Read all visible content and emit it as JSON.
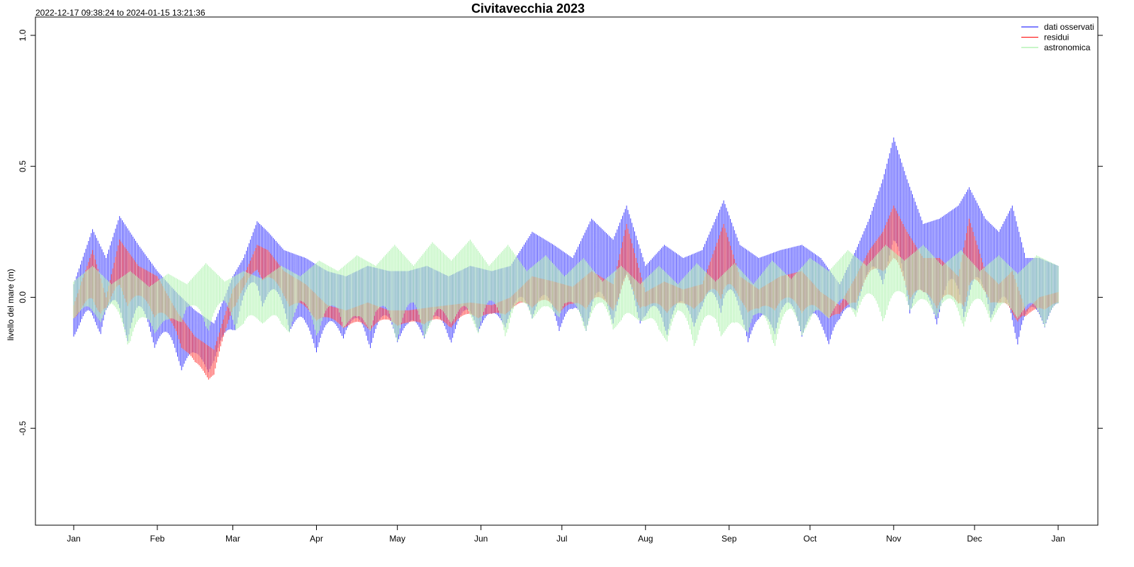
{
  "chart_data": {
    "type": "line",
    "title": "Civitavecchia 2023",
    "subtitle": "2022-12-17 09:38:24 to 2024-01-15 13:21:36",
    "ylabel": "livello del mare (m)",
    "xlabel": "",
    "x_start": "2023-01-01",
    "x_end": "2024-01-01",
    "x_ticks": [
      "Jan",
      "Feb",
      "Mar",
      "Apr",
      "May",
      "Jun",
      "Jul",
      "Aug",
      "Sep",
      "Oct",
      "Nov",
      "Dec",
      "Jan"
    ],
    "x_tick_dates": [
      "2023-01-01",
      "2023-02-01",
      "2023-03-01",
      "2023-04-01",
      "2023-05-01",
      "2023-06-01",
      "2023-07-01",
      "2023-08-01",
      "2023-09-01",
      "2023-10-01",
      "2023-11-01",
      "2023-12-01",
      "2024-01-01"
    ],
    "ylim": [
      -0.87,
      1.07
    ],
    "y_ticks": [
      -0.5,
      0.0,
      0.5,
      1.0
    ],
    "y_tick_labels": [
      "-0.5",
      "0.0",
      "0.5",
      "1.0"
    ],
    "legend_position": "top-right",
    "series": [
      {
        "name": "dati osservati",
        "color": "#0000ff",
        "envelope": {
          "dates": [
            "2023-01-01",
            "2023-01-08",
            "2023-01-13",
            "2023-01-18",
            "2023-01-25",
            "2023-02-01",
            "2023-02-08",
            "2023-02-15",
            "2023-02-22",
            "2023-03-01",
            "2023-03-05",
            "2023-03-10",
            "2023-03-14",
            "2023-03-20",
            "2023-03-28",
            "2023-04-05",
            "2023-04-12",
            "2023-04-20",
            "2023-04-28",
            "2023-05-05",
            "2023-05-12",
            "2023-05-20",
            "2023-05-28",
            "2023-06-05",
            "2023-06-12",
            "2023-06-20",
            "2023-06-28",
            "2023-07-05",
            "2023-07-12",
            "2023-07-20",
            "2023-07-25",
            "2023-08-01",
            "2023-08-08",
            "2023-08-15",
            "2023-08-22",
            "2023-08-30",
            "2023-09-05",
            "2023-09-12",
            "2023-09-20",
            "2023-09-28",
            "2023-10-05",
            "2023-10-12",
            "2023-10-18",
            "2023-10-23",
            "2023-10-28",
            "2023-11-01",
            "2023-11-06",
            "2023-11-12",
            "2023-11-18",
            "2023-11-25",
            "2023-11-29",
            "2023-12-05",
            "2023-12-10",
            "2023-12-15",
            "2023-12-20",
            "2023-12-25",
            "2024-01-01"
          ],
          "high": [
            0.05,
            0.26,
            0.15,
            0.31,
            0.2,
            0.1,
            0.02,
            -0.05,
            -0.1,
            0.08,
            0.15,
            0.29,
            0.25,
            0.18,
            0.15,
            0.1,
            0.08,
            0.12,
            0.1,
            0.1,
            0.12,
            0.08,
            0.12,
            0.1,
            0.12,
            0.25,
            0.2,
            0.15,
            0.3,
            0.22,
            0.35,
            0.12,
            0.2,
            0.15,
            0.18,
            0.37,
            0.2,
            0.15,
            0.18,
            0.2,
            0.15,
            0.05,
            0.18,
            0.3,
            0.45,
            0.61,
            0.45,
            0.28,
            0.3,
            0.35,
            0.42,
            0.3,
            0.25,
            0.35,
            0.15,
            0.15,
            0.12
          ],
          "low": [
            -0.15,
            -0.2,
            -0.1,
            -0.18,
            -0.15,
            -0.2,
            -0.27,
            -0.3,
            -0.28,
            -0.15,
            -0.05,
            -0.02,
            -0.05,
            -0.1,
            -0.22,
            -0.2,
            -0.15,
            -0.2,
            -0.15,
            -0.2,
            -0.15,
            -0.18,
            -0.12,
            -0.15,
            -0.1,
            -0.08,
            -0.12,
            -0.15,
            -0.12,
            -0.1,
            -0.05,
            -0.12,
            -0.15,
            -0.1,
            -0.12,
            -0.05,
            -0.15,
            -0.2,
            -0.12,
            -0.15,
            -0.2,
            -0.15,
            -0.05,
            0.0,
            0.05,
            0.02,
            -0.05,
            -0.12,
            -0.1,
            -0.05,
            -0.1,
            -0.05,
            -0.12,
            -0.2,
            -0.15,
            -0.12,
            -0.1
          ]
        }
      },
      {
        "name": "residui",
        "color": "#ff0000",
        "envelope": {
          "dates": [
            "2023-01-01",
            "2023-01-08",
            "2023-01-13",
            "2023-01-18",
            "2023-01-25",
            "2023-02-01",
            "2023-02-08",
            "2023-02-15",
            "2023-02-22",
            "2023-03-01",
            "2023-03-05",
            "2023-03-10",
            "2023-03-14",
            "2023-03-20",
            "2023-03-28",
            "2023-04-05",
            "2023-04-12",
            "2023-04-20",
            "2023-04-28",
            "2023-05-05",
            "2023-05-12",
            "2023-05-20",
            "2023-05-28",
            "2023-06-05",
            "2023-06-12",
            "2023-06-20",
            "2023-06-28",
            "2023-07-05",
            "2023-07-12",
            "2023-07-20",
            "2023-07-25",
            "2023-08-01",
            "2023-08-08",
            "2023-08-15",
            "2023-08-22",
            "2023-08-30",
            "2023-09-05",
            "2023-09-12",
            "2023-09-20",
            "2023-09-28",
            "2023-10-05",
            "2023-10-12",
            "2023-10-18",
            "2023-10-23",
            "2023-10-28",
            "2023-11-01",
            "2023-11-06",
            "2023-11-12",
            "2023-11-18",
            "2023-11-25",
            "2023-11-29",
            "2023-12-05",
            "2023-12-10",
            "2023-12-15",
            "2023-12-20",
            "2023-12-25",
            "2024-01-01"
          ],
          "high": [
            -0.03,
            0.18,
            0.0,
            0.22,
            0.12,
            0.08,
            -0.05,
            -0.15,
            -0.2,
            0.03,
            0.08,
            0.2,
            0.18,
            0.1,
            0.05,
            -0.03,
            -0.05,
            -0.02,
            -0.05,
            -0.05,
            -0.04,
            -0.03,
            -0.02,
            -0.03,
            0.0,
            0.08,
            0.06,
            0.04,
            0.1,
            0.05,
            0.28,
            0.02,
            0.06,
            0.03,
            0.05,
            0.28,
            0.08,
            0.03,
            0.08,
            0.1,
            0.02,
            -0.03,
            0.08,
            0.18,
            0.25,
            0.35,
            0.25,
            0.15,
            0.15,
            0.08,
            0.3,
            0.1,
            0.05,
            0.1,
            -0.05,
            0.0,
            0.02
          ],
          "low": [
            -0.08,
            -0.08,
            -0.05,
            -0.02,
            -0.05,
            -0.08,
            -0.15,
            -0.3,
            -0.32,
            -0.05,
            0.02,
            0.08,
            0.05,
            -0.02,
            -0.08,
            -0.1,
            -0.12,
            -0.13,
            -0.1,
            -0.12,
            -0.1,
            -0.12,
            -0.08,
            -0.08,
            -0.06,
            -0.04,
            -0.06,
            -0.06,
            -0.04,
            -0.05,
            -0.02,
            -0.05,
            -0.06,
            -0.05,
            -0.04,
            0.0,
            -0.04,
            -0.08,
            -0.04,
            -0.06,
            -0.08,
            -0.08,
            -0.02,
            0.05,
            0.1,
            0.05,
            0.0,
            -0.05,
            -0.04,
            -0.05,
            -0.02,
            0.0,
            -0.05,
            -0.1,
            -0.08,
            -0.05,
            -0.04
          ]
        }
      },
      {
        "name": "astronomica",
        "color": "#90ee90",
        "envelope": {
          "dates": [
            "2023-01-01",
            "2023-01-08",
            "2023-01-15",
            "2023-01-22",
            "2023-01-29",
            "2023-02-05",
            "2023-02-12",
            "2023-02-19",
            "2023-02-26",
            "2023-03-05",
            "2023-03-12",
            "2023-03-19",
            "2023-03-26",
            "2023-04-02",
            "2023-04-09",
            "2023-04-16",
            "2023-04-23",
            "2023-04-30",
            "2023-05-07",
            "2023-05-14",
            "2023-05-21",
            "2023-05-28",
            "2023-06-04",
            "2023-06-11",
            "2023-06-18",
            "2023-06-25",
            "2023-07-02",
            "2023-07-09",
            "2023-07-16",
            "2023-07-23",
            "2023-07-30",
            "2023-08-06",
            "2023-08-13",
            "2023-08-20",
            "2023-08-27",
            "2023-09-03",
            "2023-09-10",
            "2023-09-17",
            "2023-09-24",
            "2023-10-01",
            "2023-10-08",
            "2023-10-15",
            "2023-10-22",
            "2023-10-29",
            "2023-11-05",
            "2023-11-12",
            "2023-11-19",
            "2023-11-26",
            "2023-12-03",
            "2023-12-10",
            "2023-12-17",
            "2023-12-24",
            "2024-01-01"
          ],
          "high": [
            0.06,
            0.12,
            0.05,
            0.1,
            0.04,
            0.09,
            0.05,
            0.13,
            0.06,
            0.1,
            0.07,
            0.12,
            0.08,
            0.14,
            0.1,
            0.16,
            0.12,
            0.2,
            0.12,
            0.21,
            0.14,
            0.22,
            0.12,
            0.2,
            0.1,
            0.16,
            0.08,
            0.15,
            0.06,
            0.12,
            0.05,
            0.12,
            0.05,
            0.13,
            0.06,
            0.13,
            0.05,
            0.14,
            0.07,
            0.15,
            0.1,
            0.18,
            0.12,
            0.2,
            0.14,
            0.2,
            0.12,
            0.18,
            0.1,
            0.16,
            0.09,
            0.16,
            0.12
          ],
          "low": [
            -0.08,
            -0.12,
            -0.06,
            -0.2,
            -0.12,
            -0.18,
            -0.06,
            -0.14,
            -0.05,
            -0.18,
            -0.1,
            -0.19,
            -0.06,
            -0.16,
            -0.08,
            -0.2,
            -0.1,
            -0.18,
            -0.09,
            -0.2,
            -0.1,
            -0.18,
            -0.08,
            -0.16,
            -0.06,
            -0.14,
            -0.05,
            -0.14,
            -0.06,
            -0.17,
            -0.09,
            -0.22,
            -0.1,
            -0.2,
            -0.12,
            -0.22,
            -0.1,
            -0.2,
            -0.1,
            -0.18,
            -0.08,
            -0.1,
            -0.04,
            -0.1,
            -0.02,
            -0.12,
            -0.06,
            -0.12,
            -0.06,
            -0.12,
            -0.08,
            -0.12,
            -0.1
          ]
        }
      }
    ]
  }
}
